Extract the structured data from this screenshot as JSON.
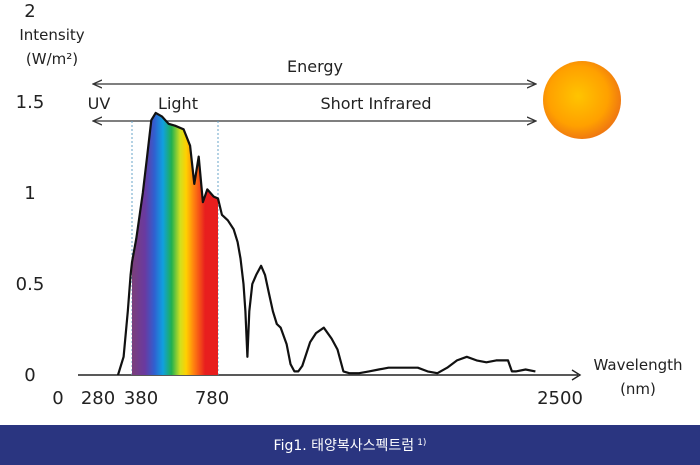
{
  "chart_data": {
    "type": "line",
    "ylabel_line1": "Intensity",
    "ylabel_line2": "(W/m²)",
    "xlabel_line1": "Wavelength",
    "xlabel_line2": "(nm)",
    "yticks": [
      {
        "value": 0,
        "label": "0"
      },
      {
        "value": 0.5,
        "label": "0.5"
      },
      {
        "value": 1,
        "label": "1"
      },
      {
        "value": 1.5,
        "label": "1.5"
      },
      {
        "value": 2,
        "label": "2"
      }
    ],
    "xticks": [
      {
        "value": 0,
        "label": "0"
      },
      {
        "value": 280,
        "label": "280"
      },
      {
        "value": 380,
        "label": "380"
      },
      {
        "value": 780,
        "label": "780"
      },
      {
        "value": 2500,
        "label": "2500"
      }
    ],
    "bands": [
      {
        "label": "Energy",
        "from": "start",
        "to": "end"
      },
      {
        "label": "UV",
        "from": "start",
        "to": 380
      },
      {
        "label": "Light",
        "from": 380,
        "to": 780
      },
      {
        "label": "Short Infrared",
        "from": 780,
        "to": "end"
      }
    ],
    "visible_region": [
      380,
      780
    ],
    "colors": {
      "sun_core": "#ffb000",
      "sun_edge": "#f07a10",
      "curve": "#111111",
      "guide": "#6aa6c8",
      "spectrum": [
        "#7b3f7a",
        "#6a3aa0",
        "#3060d0",
        "#10a0e0",
        "#20b050",
        "#d0e020",
        "#ffd000",
        "#ff8010",
        "#e81e1e"
      ]
    },
    "series": [
      {
        "points": [
          [
            280,
            0
          ],
          [
            320,
            0.1
          ],
          [
            350,
            0.35
          ],
          [
            370,
            0.55
          ],
          [
            380,
            0.62
          ],
          [
            400,
            0.75
          ],
          [
            430,
            1.0
          ],
          [
            450,
            1.2
          ],
          [
            470,
            1.4
          ],
          [
            490,
            1.44
          ],
          [
            520,
            1.42
          ],
          [
            550,
            1.38
          ],
          [
            580,
            1.37
          ],
          [
            620,
            1.35
          ],
          [
            650,
            1.26
          ],
          [
            670,
            1.05
          ],
          [
            690,
            1.2
          ],
          [
            710,
            0.95
          ],
          [
            730,
            1.02
          ],
          [
            760,
            0.98
          ],
          [
            780,
            0.97
          ],
          [
            800,
            0.88
          ],
          [
            830,
            0.85
          ],
          [
            860,
            0.8
          ],
          [
            880,
            0.73
          ],
          [
            895,
            0.64
          ],
          [
            910,
            0.5
          ],
          [
            920,
            0.35
          ],
          [
            930,
            0.1
          ],
          [
            940,
            0.35
          ],
          [
            955,
            0.5
          ],
          [
            975,
            0.55
          ],
          [
            1000,
            0.6
          ],
          [
            1020,
            0.55
          ],
          [
            1040,
            0.45
          ],
          [
            1060,
            0.35
          ],
          [
            1080,
            0.28
          ],
          [
            1100,
            0.26
          ],
          [
            1130,
            0.17
          ],
          [
            1150,
            0.06
          ],
          [
            1170,
            0.02
          ],
          [
            1190,
            0.02
          ],
          [
            1210,
            0.05
          ],
          [
            1250,
            0.18
          ],
          [
            1280,
            0.23
          ],
          [
            1320,
            0.26
          ],
          [
            1360,
            0.2
          ],
          [
            1390,
            0.14
          ],
          [
            1420,
            0.02
          ],
          [
            1450,
            0.01
          ],
          [
            1500,
            0.01
          ],
          [
            1550,
            0.02
          ],
          [
            1600,
            0.03
          ],
          [
            1650,
            0.04
          ],
          [
            1700,
            0.04
          ],
          [
            1800,
            0.04
          ],
          [
            1850,
            0.02
          ],
          [
            1900,
            0.01
          ],
          [
            1950,
            0.04
          ],
          [
            2000,
            0.08
          ],
          [
            2050,
            0.1
          ],
          [
            2100,
            0.08
          ],
          [
            2150,
            0.07
          ],
          [
            2200,
            0.08
          ],
          [
            2260,
            0.08
          ],
          [
            2280,
            0.02
          ],
          [
            2300,
            0.02
          ],
          [
            2350,
            0.03
          ],
          [
            2400,
            0.02
          ]
        ]
      }
    ]
  },
  "caption": {
    "text": "Fig1. 태양복사스펙트럼",
    "ref": "1)"
  }
}
